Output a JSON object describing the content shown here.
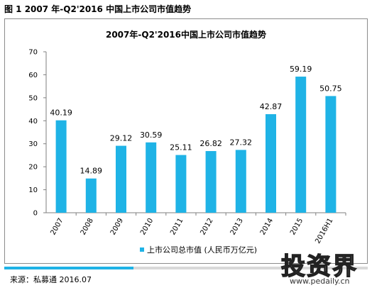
{
  "figure_title": "图 1 2007 年-Q2'2016 中国上市公司市值趋势",
  "source": "来源：私募通 2016.07",
  "watermark": {
    "logo": "投资界",
    "url": "www.pedaily.cn"
  },
  "colors": {
    "bar": "#1fb3e6",
    "footer_fill": "#1fb3e6",
    "footer_track": "#d9d9d9"
  },
  "chart_data": {
    "type": "bar",
    "title": "2007年-Q2'2016中国上市公司市值趋势",
    "categories": [
      "2007",
      "2008",
      "2009",
      "2010",
      "2011",
      "2012",
      "2013",
      "2014",
      "2015",
      "2016H1"
    ],
    "series": [
      {
        "name": "上市公司总市值 (人民币万亿元)",
        "values": [
          40.19,
          14.89,
          29.12,
          30.59,
          25.11,
          26.82,
          27.32,
          42.87,
          59.19,
          50.75
        ],
        "data_labels": [
          "40.19",
          "14.89",
          "29.12",
          "30.59",
          "25.11",
          "26.82",
          "27.32",
          "42.87",
          "59.19",
          "50.75"
        ]
      }
    ],
    "ylim": [
      0,
      70
    ],
    "yticks": [
      0,
      10,
      20,
      30,
      40,
      50,
      60,
      70
    ],
    "ytick_labels": [
      "0",
      "10",
      "20",
      "30",
      "40",
      "50",
      "60",
      "70"
    ],
    "xlabel": "",
    "ylabel": "",
    "grid": false,
    "legend_position": "bottom"
  }
}
